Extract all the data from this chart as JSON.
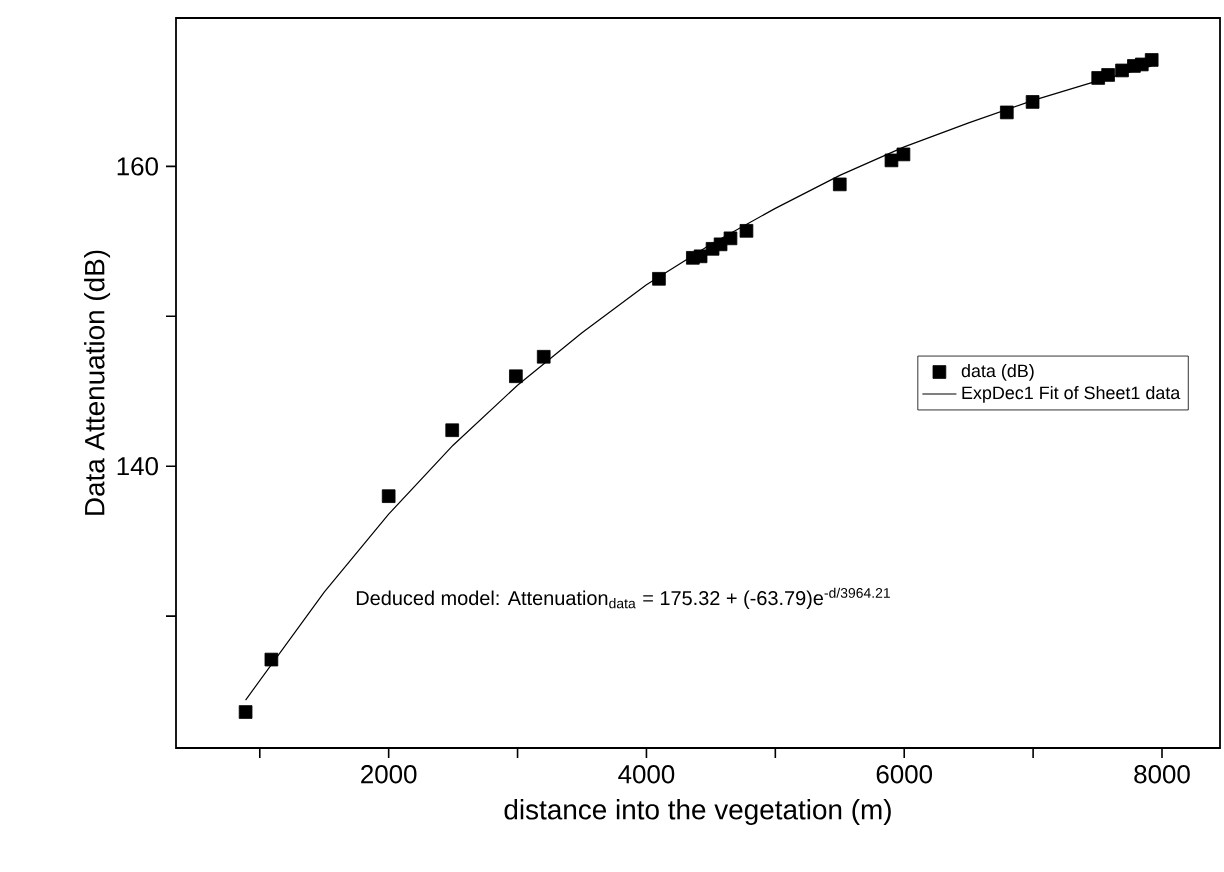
{
  "chart_data": {
    "type": "scatter",
    "xlabel": "distance into the vegetation (m)",
    "ylabel": "Data Attenuation (dB)",
    "xlim": [
      350,
      8450
    ],
    "ylim": [
      121.2,
      169.9
    ],
    "xticks": [
      {
        "value": 1000,
        "label": null
      },
      2000,
      {
        "value": 3000,
        "label": null
      },
      4000,
      {
        "value": 5000,
        "label": null
      },
      6000,
      {
        "value": 7000,
        "label": null
      },
      8000
    ],
    "yticks": [
      {
        "value": 130,
        "label": null
      },
      140,
      {
        "value": 150,
        "label": null
      },
      160
    ],
    "legend": "right",
    "grid": false,
    "series": [
      {
        "name": "data (dB)",
        "marker": "square",
        "color": "#000000",
        "x": [
          890,
          1090,
          2000,
          2493,
          2987,
          3203,
          4097,
          4360,
          4420,
          4513,
          4575,
          4652,
          4776,
          5500,
          5901,
          5994,
          6796,
          6996,
          7505,
          7582,
          7690,
          7782,
          7843,
          7920
        ],
        "values": [
          123.6,
          127.1,
          138.0,
          142.4,
          146.0,
          147.3,
          152.5,
          153.9,
          154.0,
          154.5,
          154.8,
          155.2,
          155.7,
          158.8,
          160.4,
          160.8,
          163.6,
          164.3,
          165.9,
          166.1,
          166.4,
          166.7,
          166.8,
          167.1
        ]
      },
      {
        "name": "ExpDec1 Fit of Sheet1 data",
        "type": "line",
        "marker": "none",
        "line_style": "solid",
        "color": "#000000",
        "x": [
          890,
          1500,
          2000,
          2500,
          3000,
          3500,
          4000,
          4500,
          5000,
          5500,
          6000,
          6500,
          7000,
          7500,
          7920
        ],
        "values": [
          124.4,
          131.6,
          136.8,
          141.4,
          145.4,
          148.9,
          152.1,
          154.8,
          157.2,
          159.4,
          161.3,
          162.9,
          164.4,
          165.7,
          166.7
        ]
      }
    ],
    "annotations": [
      "Deduced model: Attenuation$_{data}$ = 175.32 + (-63.79)e$^{-d/3964.21}$"
    ]
  }
}
